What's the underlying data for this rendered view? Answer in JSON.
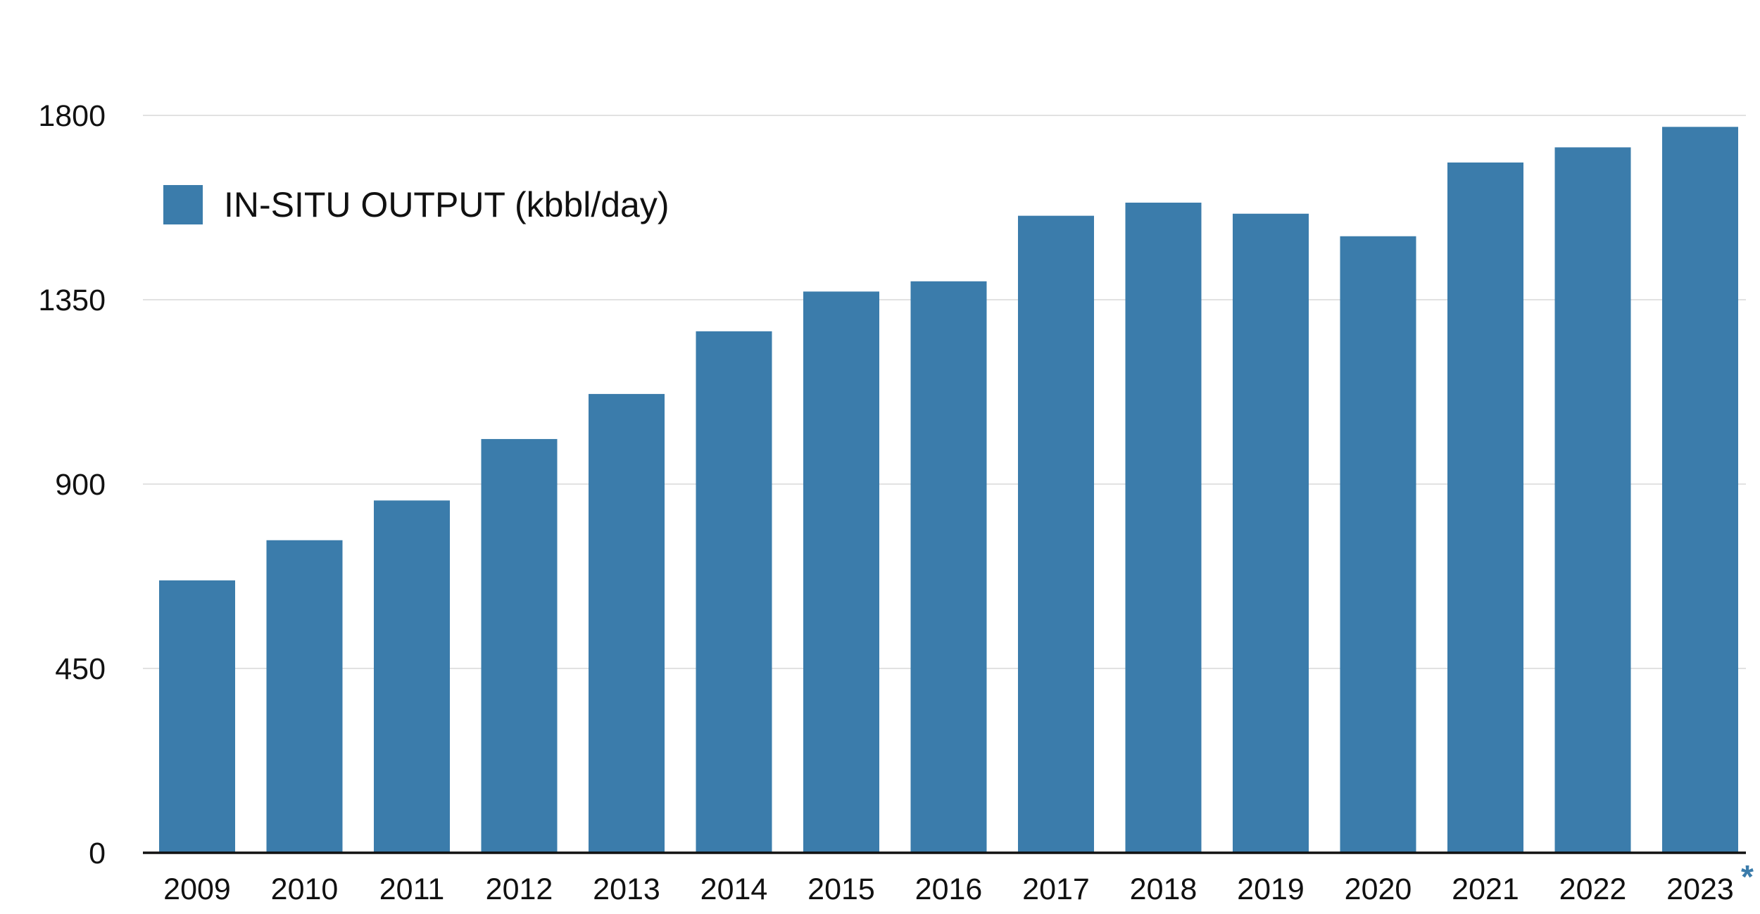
{
  "chart_data": {
    "type": "bar",
    "categories": [
      "2009",
      "2010",
      "2011",
      "2012",
      "2013",
      "2014",
      "2015",
      "2016",
      "2017",
      "2018",
      "2019",
      "2020",
      "2021",
      "2022",
      "2023"
    ],
    "series": [
      {
        "name": "IN-SITU OUTPUT (kbbl/day)",
        "values": [
          665,
          763,
          860,
          1010,
          1120,
          1273,
          1370,
          1395,
          1555,
          1587,
          1560,
          1505,
          1685,
          1722,
          1772
        ]
      }
    ],
    "ylim": [
      0,
      1800
    ],
    "yticks": [
      "0",
      "450",
      "900",
      "1350",
      "1800"
    ],
    "grid": true,
    "legend_position": "top-left",
    "footnote_marker": "*",
    "colors": {
      "bar": "#3b7cab",
      "grid": "#d9d9d9",
      "axis": "#111111",
      "footnote": "#3b7cab"
    }
  }
}
